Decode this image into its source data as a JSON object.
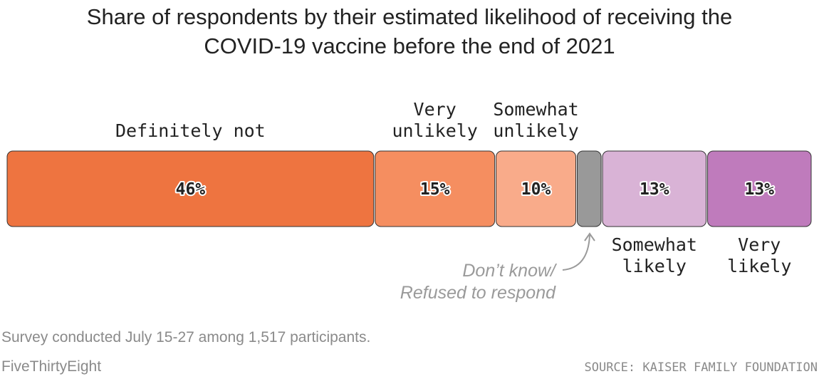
{
  "chart_data": {
    "type": "bar",
    "orientation": "horizontal-stacked",
    "title": "Share of respondents by their estimated likelihood of receiving the COVID-19 vaccine before the end of 2021",
    "title_lines": [
      "Share of respondents by their estimated likelihood of receiving the",
      "COVID-19 vaccine before the end of 2021"
    ],
    "unit": "%",
    "segments": [
      {
        "name": "Definitely not",
        "label_lines": [
          "Definitely not"
        ],
        "value": 46,
        "value_label": "46%",
        "color": "#ee7440",
        "label_position": "above"
      },
      {
        "name": "Very unlikely",
        "label_lines": [
          "Very",
          "unlikely"
        ],
        "value": 15,
        "value_label": "15%",
        "color": "#f58e60",
        "label_position": "above"
      },
      {
        "name": "Somewhat unlikely",
        "label_lines": [
          "Somewhat",
          "unlikely"
        ],
        "value": 10,
        "value_label": "10%",
        "color": "#f9ab8a",
        "label_position": "above"
      },
      {
        "name": "Don’t know/ Refused to respond",
        "label_lines": [
          "Don’t know/",
          "Refused to respond"
        ],
        "value": 3,
        "value_label": "",
        "color": "#999999",
        "label_position": "annotation"
      },
      {
        "name": "Somewhat likely",
        "label_lines": [
          "Somewhat",
          "likely"
        ],
        "value": 13,
        "value_label": "13%",
        "color": "#d9b3d6",
        "label_position": "below"
      },
      {
        "name": "Very likely",
        "label_lines": [
          "Very",
          "likely"
        ],
        "value": 13,
        "value_label": "13%",
        "color": "#bf7bbc",
        "label_position": "below"
      }
    ],
    "legend": "none",
    "grid": false
  },
  "footer": {
    "note": "Survey conducted July 15-27 among 1,517 participants.",
    "brand": "FiveThirtyEight",
    "source": "SOURCE: KAISER FAMILY FOUNDATION"
  },
  "colors": {
    "text": "#222222",
    "muted": "#8a8a8a",
    "bar_stroke": "#333333",
    "annotation": "#9a9a9a"
  }
}
